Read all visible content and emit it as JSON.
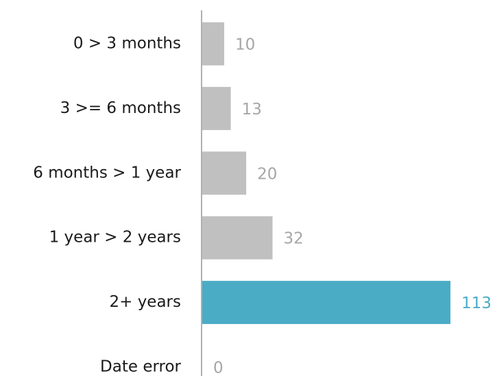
{
  "chart_data": {
    "type": "bar",
    "orientation": "horizontal",
    "categories": [
      "0 > 3 months",
      "3 >= 6 months",
      "6 months > 1 year",
      "1 year > 2 years",
      "2+ years",
      "Date error"
    ],
    "values": [
      10,
      13,
      20,
      32,
      113,
      0
    ],
    "colors": [
      "#c0c0c0",
      "#c0c0c0",
      "#c0c0c0",
      "#c0c0c0",
      "#4bacc6",
      "#c0c0c0"
    ],
    "value_label_colors": [
      "#a6a6a6",
      "#a6a6a6",
      "#a6a6a6",
      "#a6a6a6",
      "#4bacc6",
      "#a6a6a6"
    ]
  }
}
